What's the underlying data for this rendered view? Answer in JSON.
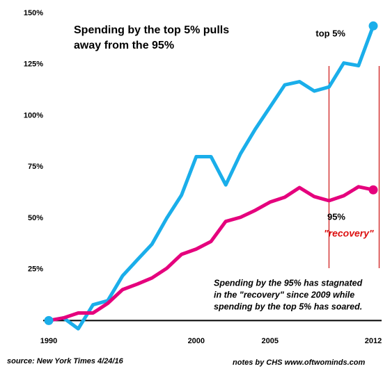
{
  "chart_data": {
    "type": "line",
    "title": [
      "Spending by the top 5% pulls",
      "away from the 95%"
    ],
    "x": [
      1990,
      1991,
      1992,
      1993,
      1994,
      1995,
      1996,
      1997,
      1998,
      1999,
      2000,
      2001,
      2002,
      2003,
      2004,
      2005,
      2006,
      2007,
      2008,
      2009,
      2010,
      2011,
      2012
    ],
    "series": [
      {
        "name": "top 5%",
        "color": "#1aaeea",
        "values": [
          0,
          1.3,
          -4,
          7.7,
          9.7,
          21.8,
          29.6,
          37.3,
          50,
          61.2,
          80,
          80,
          66.2,
          81.4,
          93.4,
          104.2,
          115,
          116.6,
          112,
          114,
          125.7,
          124.4,
          143.8
        ]
      },
      {
        "name": "95%",
        "color": "#e5007d",
        "values": [
          0,
          1.3,
          3.7,
          3.7,
          8.4,
          15.1,
          17.8,
          20.8,
          25.5,
          32.3,
          34.9,
          38.6,
          48.4,
          50.4,
          53.8,
          57.8,
          60.2,
          64.9,
          60.5,
          58.5,
          60.9,
          65.3,
          63.8
        ]
      }
    ],
    "xlim": [
      1990,
      2012
    ],
    "xticks": [
      1990,
      2000,
      2005,
      2012
    ],
    "ylim": [
      -8,
      150
    ],
    "yticks": [
      {
        "value": 25,
        "label": "25%"
      },
      {
        "value": 50,
        "label": "50%"
      },
      {
        "value": 75,
        "label": "75%"
      },
      {
        "value": 100,
        "label": "100%"
      },
      {
        "value": 125,
        "label": "125%"
      },
      {
        "value": 150,
        "label": "150%"
      }
    ],
    "grid": false,
    "vlines": [
      2009,
      2012.4
    ],
    "vline_color": "#cc1111",
    "annotations": {
      "recovery": "\"recovery\"",
      "note": [
        "Spending by the 95% has stagnated",
        "in the \"recovery\" since 2009 while",
        "spending by the top 5% has soared."
      ],
      "source": "source: New York Times 4/24/16",
      "credit": "notes by CHS  www.oftwominds.com"
    }
  }
}
